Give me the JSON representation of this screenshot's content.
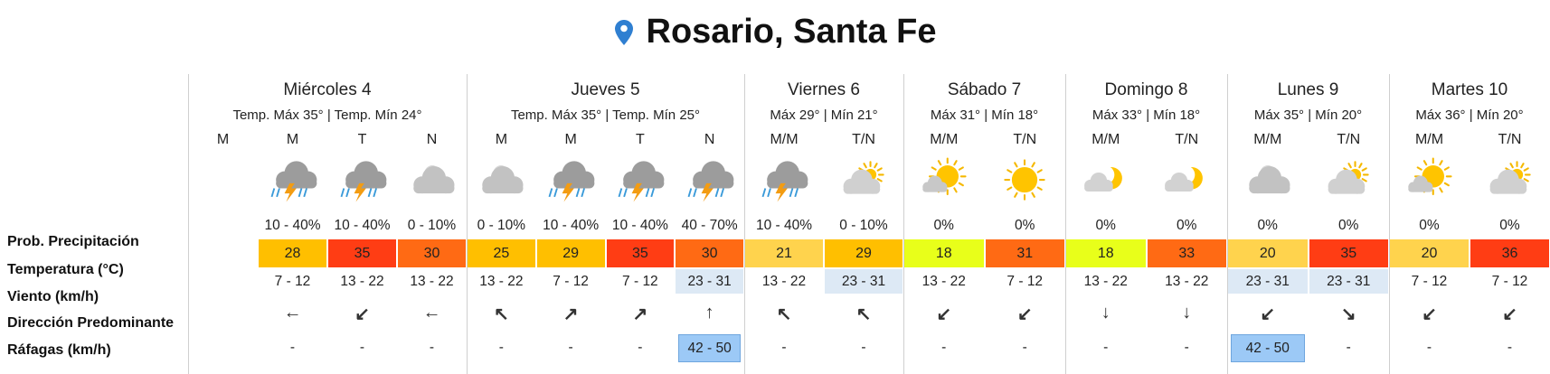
{
  "title": "Rosario, Santa Fe",
  "row_labels": [
    "Prob. Precipitación",
    "Temperatura (°C)",
    "Viento (km/h)",
    "Dirección Predominante",
    "Ráfagas (km/h)"
  ],
  "days": [
    {
      "name": "Miércoles 4",
      "summary": "Temp. Máx 35° | Temp. Mín 24°",
      "periods": [
        {
          "label": "M"
        },
        {
          "label": "M",
          "icon": "storm",
          "precip": "10 - 40%",
          "temp": 28,
          "temp_color": "#ffbf00",
          "wind": "7 - 12",
          "wind_highlight": false,
          "arrow": "←",
          "gust": "-",
          "gust_highlight": false
        },
        {
          "label": "T",
          "icon": "storm",
          "precip": "10 - 40%",
          "temp": 35,
          "temp_color": "#ff3d14",
          "wind": "13 - 22",
          "wind_highlight": false,
          "arrow": "↙",
          "gust": "-",
          "gust_highlight": false
        },
        {
          "label": "N",
          "icon": "cloud-night",
          "precip": "0 - 10%",
          "temp": 30,
          "temp_color": "#ff6a14",
          "wind": "13 - 22",
          "wind_highlight": false,
          "arrow": "←",
          "gust": "-",
          "gust_highlight": false
        }
      ]
    },
    {
      "name": "Jueves 5",
      "summary": "Temp. Máx 35° | Temp. Mín 25°",
      "periods": [
        {
          "label": "M",
          "icon": "cloud-night",
          "precip": "0 - 10%",
          "temp": 25,
          "temp_color": "#ffbf00",
          "wind": "13 - 22",
          "wind_highlight": false,
          "arrow": "↖",
          "gust": "-",
          "gust_highlight": false
        },
        {
          "label": "M",
          "icon": "storm",
          "precip": "10 - 40%",
          "temp": 29,
          "temp_color": "#ffbf00",
          "wind": "7 - 12",
          "wind_highlight": false,
          "arrow": "↗",
          "gust": "-",
          "gust_highlight": false
        },
        {
          "label": "T",
          "icon": "storm",
          "precip": "10 - 40%",
          "temp": 35,
          "temp_color": "#ff3d14",
          "wind": "7 - 12",
          "wind_highlight": false,
          "arrow": "↗",
          "gust": "-",
          "gust_highlight": false
        },
        {
          "label": "N",
          "icon": "storm",
          "precip": "40 - 70%",
          "temp": 30,
          "temp_color": "#ff6a14",
          "wind": "23 - 31",
          "wind_highlight": true,
          "arrow": "↑",
          "gust": "42 - 50",
          "gust_highlight": true
        }
      ]
    },
    {
      "name": "Viernes 6",
      "summary": "Máx 29° | Mín 21°",
      "periods": [
        {
          "label": "M/M",
          "icon": "storm",
          "precip": "10 - 40%",
          "temp": 21,
          "temp_color": "#ffd34d",
          "wind": "13 - 22",
          "wind_highlight": false,
          "arrow": "↖",
          "gust": "-",
          "gust_highlight": false
        },
        {
          "label": "T/N",
          "icon": "cloud-sun",
          "precip": "0 - 10%",
          "temp": 29,
          "temp_color": "#ffbf00",
          "wind": "23 - 31",
          "wind_highlight": true,
          "arrow": "↖",
          "gust": "-",
          "gust_highlight": false
        }
      ]
    },
    {
      "name": "Sábado 7",
      "summary": "Máx 31° | Mín 18°",
      "periods": [
        {
          "label": "M/M",
          "icon": "sun-cloud",
          "precip": "0%",
          "temp": 18,
          "temp_color": "#e8ff1a",
          "wind": "13 - 22",
          "wind_highlight": false,
          "arrow": "↙",
          "gust": "-",
          "gust_highlight": false
        },
        {
          "label": "T/N",
          "icon": "sun",
          "precip": "0%",
          "temp": 31,
          "temp_color": "#ff6a14",
          "wind": "7 - 12",
          "wind_highlight": false,
          "arrow": "↙",
          "gust": "-",
          "gust_highlight": false
        }
      ]
    },
    {
      "name": "Domingo 8",
      "summary": "Máx 33° | Mín 18°",
      "periods": [
        {
          "label": "M/M",
          "icon": "moon-cloud",
          "precip": "0%",
          "temp": 18,
          "temp_color": "#e8ff1a",
          "wind": "13 - 22",
          "wind_highlight": false,
          "arrow": "↓",
          "gust": "-",
          "gust_highlight": false
        },
        {
          "label": "T/N",
          "icon": "moon-cloud",
          "precip": "0%",
          "temp": 33,
          "temp_color": "#ff6a14",
          "wind": "13 - 22",
          "wind_highlight": false,
          "arrow": "↓",
          "gust": "-",
          "gust_highlight": false
        }
      ]
    },
    {
      "name": "Lunes 9",
      "summary": "Máx 35° | Mín 20°",
      "periods": [
        {
          "label": "M/M",
          "icon": "cloud-night",
          "precip": "0%",
          "temp": 20,
          "temp_color": "#ffd34d",
          "wind": "23 - 31",
          "wind_highlight": true,
          "arrow": "↙",
          "gust": "42 - 50",
          "gust_highlight": true
        },
        {
          "label": "T/N",
          "icon": "cloud-sun",
          "precip": "0%",
          "temp": 35,
          "temp_color": "#ff3d14",
          "wind": "23 - 31",
          "wind_highlight": true,
          "arrow": "↘",
          "gust": "-",
          "gust_highlight": false
        }
      ]
    },
    {
      "name": "Martes 10",
      "summary": "Máx 36° | Mín 20°",
      "periods": [
        {
          "label": "M/M",
          "icon": "sun-cloud",
          "precip": "0%",
          "temp": 20,
          "temp_color": "#ffd34d",
          "wind": "7 - 12",
          "wind_highlight": false,
          "arrow": "↙",
          "gust": "-",
          "gust_highlight": false
        },
        {
          "label": "T/N",
          "icon": "cloud-sun",
          "precip": "0%",
          "temp": 36,
          "temp_color": "#ff3d14",
          "wind": "7 - 12",
          "wind_highlight": false,
          "arrow": "↙",
          "gust": "-",
          "gust_highlight": false
        }
      ]
    }
  ]
}
